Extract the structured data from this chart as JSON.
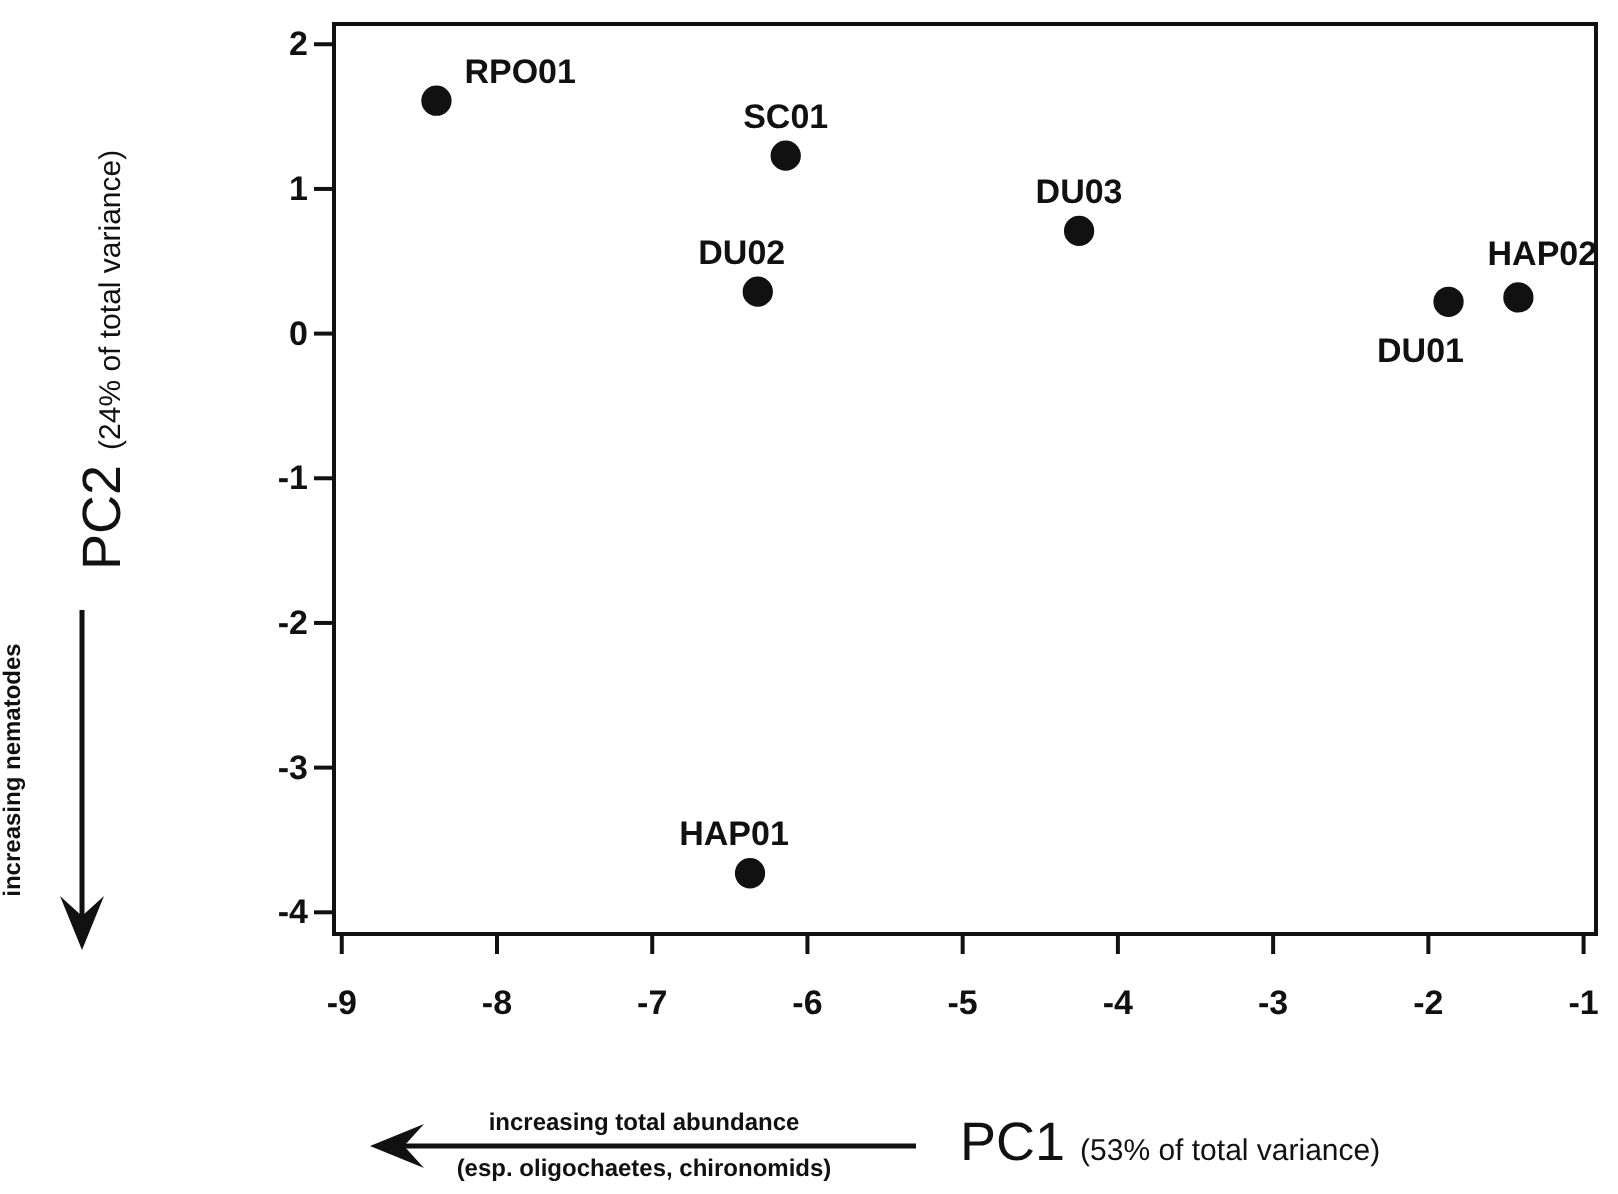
{
  "chart_data": {
    "type": "scatter",
    "xlabel": "PC1 (53% of total variance)",
    "ylabel": "PC2 (24% of total variance)",
    "x": [
      -8.39,
      -6.14,
      -6.32,
      -4.25,
      -1.87,
      -1.42,
      -6.37
    ],
    "series": [
      {
        "color": "#111111",
        "values": [
          1.61,
          1.23,
          0.29,
          0.71,
          0.22,
          0.25,
          -3.73
        ]
      }
    ],
    "marker": "circle",
    "xlim": [
      -9.05,
      -0.92
    ],
    "ylim": [
      -4.15,
      2.14
    ],
    "xticks": [
      -9,
      -8,
      -7,
      -6,
      -5,
      -4,
      -3,
      -2,
      -1
    ],
    "yticks": [
      -4,
      -3,
      -2,
      -1,
      0,
      1,
      2
    ],
    "grid": false,
    "annotations": [
      {
        "text": "RPO01",
        "x": -8.39,
        "y": 1.61
      },
      {
        "text": "SC01",
        "x": -6.14,
        "y": 1.23
      },
      {
        "text": "DU02",
        "x": -6.32,
        "y": 0.29
      },
      {
        "text": "DU03",
        "x": -4.25,
        "y": 0.71
      },
      {
        "text": "DU01",
        "x": -1.87,
        "y": 0.22
      },
      {
        "text": "HAP02",
        "x": -1.42,
        "y": 0.25
      },
      {
        "text": "HAP01",
        "x": -6.37,
        "y": -3.73
      },
      "increasing nematodes",
      "increasing total abundance",
      "(esp. oligochaetes, chironomids)"
    ]
  }
}
